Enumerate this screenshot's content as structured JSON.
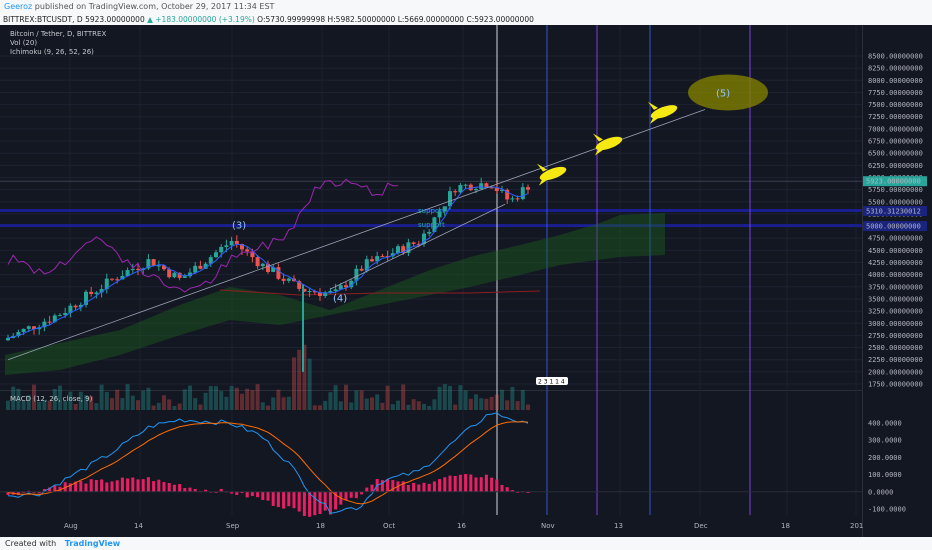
{
  "header": {
    "author": "Geeroz",
    "published": "published on TradingView.com, October 29, 2017 11:34 EST"
  },
  "ohlc": {
    "symbol": "BITTREX:BTCUSDT, D",
    "last": "5923.00000000",
    "change": "▲ +183.00000000 (+3.19%)",
    "open": "O:5730.99999998",
    "high": "H:5982.50000000",
    "low": "L:5669.00000000",
    "close": "C:5923.00000000"
  },
  "legend": {
    "title": "Bitcoin / Tether, D, BITTREX",
    "vol": "Vol (20)",
    "ichimoku": "Ichimoku (9, 26, 52, 26)",
    "macd": "MACD (12, 26, close, 9)"
  },
  "price_axis": [
    "8500.00000000",
    "8250.00000000",
    "8000.00000000",
    "7750.00000000",
    "7500.00000000",
    "7250.00000000",
    "7000.00000000",
    "6750.00000000",
    "6500.00000000",
    "6250.00000000",
    "6000.00000000",
    "5750.00000000",
    "5500.00000000",
    "5250.00000000",
    "5000.00000000",
    "4750.00000000",
    "4500.00000000",
    "4250.00000000",
    "4000.00000000",
    "3750.00000000",
    "3500.00000000",
    "3250.00000000",
    "3000.00000000",
    "2750.00000000",
    "2500.00000000",
    "2250.00000000",
    "2000.00000000",
    "1750.00000000"
  ],
  "macd_axis": [
    "400.0000",
    "300.0000",
    "200.0000",
    "100.0000",
    "0.0000",
    "-100.0000"
  ],
  "date_axis": [
    "Aug",
    "14",
    "Sep",
    "18",
    "Oct",
    "16",
    "Nov",
    "13",
    "Dec",
    "18",
    "201"
  ],
  "price_tags": {
    "last": "5923.00000000",
    "support_high": "5310.31230012",
    "support_low": "5000.00000000"
  },
  "annotations": {
    "wave3": "(3)",
    "wave4": "(4)",
    "wave5": "(5)",
    "support1": "support",
    "support2": "support",
    "marker": "2 3 1 1 4"
  },
  "colors": {
    "background": "#131722",
    "bull": "#26a69a",
    "bear": "#ef5350",
    "macd": "#2196f3",
    "signal": "#ff6d00",
    "hist": "#e91e63",
    "chikou": "#9c27b0",
    "target": "#808000",
    "rocket": "#f5e911"
  },
  "footer": {
    "created": "Created with",
    "brand": "TradingView"
  }
}
